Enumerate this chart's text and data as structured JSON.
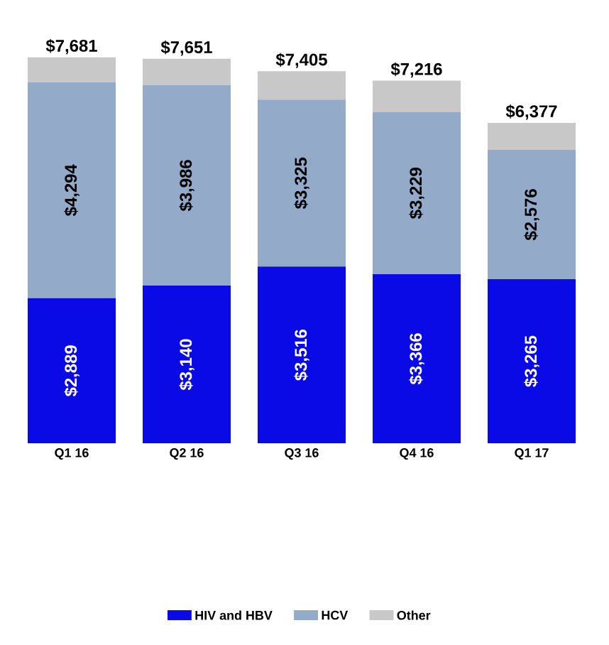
{
  "chart_data": {
    "type": "bar",
    "stacked": true,
    "categories": [
      "Q1 16",
      "Q2 16",
      "Q3 16",
      "Q4 16",
      "Q1 17"
    ],
    "series": [
      {
        "name": "HIV and HBV",
        "color": "#0a0ae6",
        "values": [
          2889,
          3140,
          3516,
          3366,
          3265
        ],
        "value_labels": [
          "$2,889",
          "$3,140",
          "$3,516",
          "$3,366",
          "$3,265"
        ]
      },
      {
        "name": "HCV",
        "color": "#93aac9",
        "values": [
          4294,
          3986,
          3325,
          3229,
          2576
        ],
        "value_labels": [
          "$4,294",
          "$3,986",
          "$3,325",
          "$3,229",
          "$2,576"
        ]
      },
      {
        "name": "Other",
        "color": "#c8c8c8",
        "values": [
          498,
          525,
          564,
          621,
          536
        ]
      }
    ],
    "totals": [
      "$7,681",
      "$7,651",
      "$7,405",
      "$7,216",
      "$6,377"
    ],
    "legend": "bottom"
  }
}
